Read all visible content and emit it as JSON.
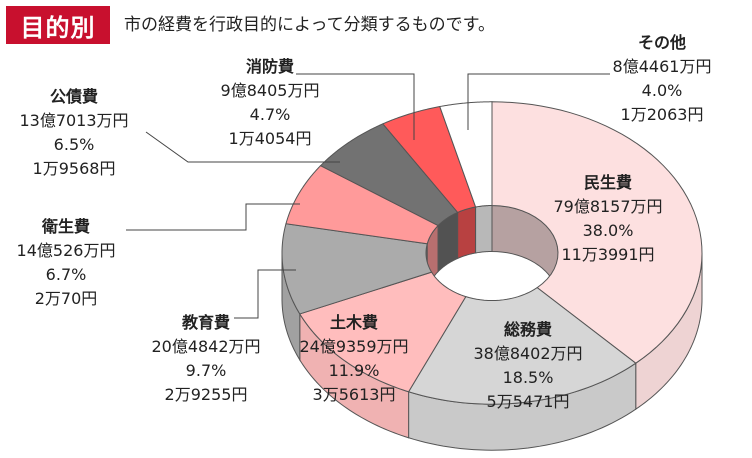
{
  "header": {
    "badge": "目的別",
    "subtitle": "市の経費を行政目的によって分類するものです。"
  },
  "colors": {
    "民生費": "#fde0e0",
    "総務費": "#d6d6d6",
    "土木費": "#ffbdbd",
    "教育費": "#ababab",
    "衛生費": "#ff9a9a",
    "公債費": "#727272",
    "消防費": "#ff5a5a",
    "その他": "#ffffff"
  },
  "chart_data": {
    "type": "pie",
    "style": "3d-donut",
    "title": "",
    "slices": [
      {
        "name": "民生費",
        "amount": "79億8157万円",
        "percent_label": "38.0%",
        "per_capita": "11万3991円",
        "value": 38.0
      },
      {
        "name": "総務費",
        "amount": "38億8402万円",
        "percent_label": "18.5%",
        "per_capita": "5万5471円",
        "value": 18.5
      },
      {
        "name": "土木費",
        "amount": "24億9359万円",
        "percent_label": "11.9%",
        "per_capita": "3万5613円",
        "value": 11.9
      },
      {
        "name": "教育費",
        "amount": "20億4842万円",
        "percent_label": "9.7%",
        "per_capita": "2万9255円",
        "value": 9.7
      },
      {
        "name": "衛生費",
        "amount": "14億526万円",
        "percent_label": "6.7%",
        "per_capita": "2万70円",
        "value": 6.7
      },
      {
        "name": "公債費",
        "amount": "13億7013万円",
        "percent_label": "6.5%",
        "per_capita": "1万9568円",
        "value": 6.5
      },
      {
        "name": "消防費",
        "amount": "9億8405万円",
        "percent_label": "4.7%",
        "per_capita": "1万4054円",
        "value": 4.7
      },
      {
        "name": "その他",
        "amount": "8億4461万円",
        "percent_label": "4.0%",
        "per_capita": "1万2063円",
        "value": 4.0
      }
    ]
  }
}
